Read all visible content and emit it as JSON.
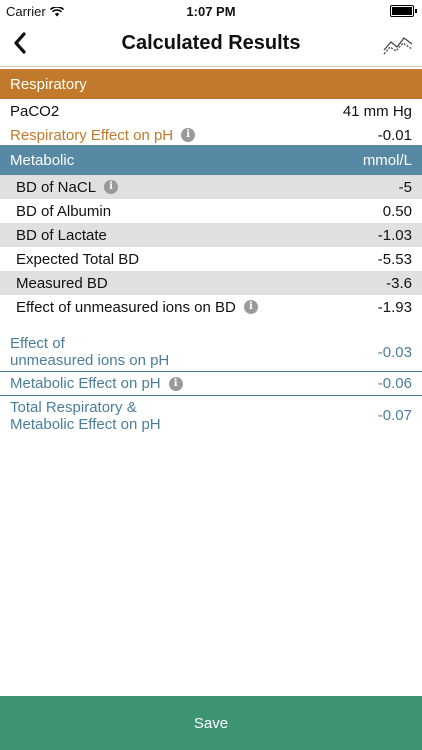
{
  "status_bar": {
    "carrier": "Carrier",
    "time": "1:07 PM"
  },
  "nav": {
    "title": "Calculated Results"
  },
  "respiratory": {
    "header": "Respiratory",
    "rows": [
      {
        "label": "PaCO2",
        "value": "41 mm Hg"
      },
      {
        "label": "Respiratory Effect on pH",
        "value": "-0.01"
      }
    ]
  },
  "metabolic": {
    "header": "Metabolic",
    "unit": "mmol/L",
    "rows": [
      {
        "label": "BD of NaCL",
        "value": "-5"
      },
      {
        "label": "BD of Albumin",
        "value": "0.50"
      },
      {
        "label": "BD of Lactate",
        "value": "-1.03"
      },
      {
        "label": "Expected Total BD",
        "value": "-5.53"
      },
      {
        "label": "Measured BD",
        "value": "-3.6"
      },
      {
        "label": "Effect of unmeasured ions on BD",
        "value": "-1.93"
      }
    ]
  },
  "effects": [
    {
      "label_line1": "Effect of",
      "label_line2": "unmeasured ions on pH",
      "value": "-0.03"
    },
    {
      "label_line1": "Metabolic Effect on pH",
      "label_line2": "",
      "value": "-0.06"
    },
    {
      "label_line1": "Total Respiratory &",
      "label_line2": "Metabolic Effect on pH",
      "value": "-0.07"
    }
  ],
  "footer": {
    "save_label": "Save"
  },
  "colors": {
    "respiratory": "#c17a2c",
    "metabolic": "#5889a4",
    "save": "#3d9472"
  }
}
